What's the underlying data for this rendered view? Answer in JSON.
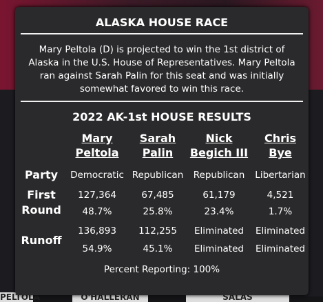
{
  "background": {
    "tabs": [
      "PELTOLA",
      "O'HALLERAN",
      "SALAS"
    ]
  },
  "modal": {
    "title": "ALASKA HOUSE RACE",
    "description": "Mary Peltola (D) is projected to win the 1st district of Alaska in the U.S. House of Representatives. Mary Peltola ran against Sarah Palin for this seat and was initially somewhat favored to win this race.",
    "results_title": "2022 AK-1st HOUSE RESULTS",
    "row_labels": [
      "Party",
      "First Round",
      "Runoff"
    ],
    "candidates": [
      {
        "first": "Mary",
        "last": "Peltola",
        "party": "Democratic",
        "first_round_votes": "127,364",
        "first_round_pct": "48.7%",
        "runoff_votes": "136,893",
        "runoff_pct": "54.9%"
      },
      {
        "first": "Sarah",
        "last": "Palin",
        "party": "Republican",
        "first_round_votes": "67,485",
        "first_round_pct": "25.8%",
        "runoff_votes": "112,255",
        "runoff_pct": "45.1%"
      },
      {
        "first": "Nick",
        "last": "Begich III",
        "party": "Republican",
        "first_round_votes": "61,179",
        "first_round_pct": "23.4%",
        "runoff_votes": "Eliminated",
        "runoff_pct": "Eliminated"
      },
      {
        "first": "Chris",
        "last": "Bye",
        "party": "Libertarian",
        "first_round_votes": "4,521",
        "first_round_pct": "1.7%",
        "runoff_votes": "Eliminated",
        "runoff_pct": "Eliminated"
      }
    ],
    "footer": "Percent Reporting: 100%"
  }
}
